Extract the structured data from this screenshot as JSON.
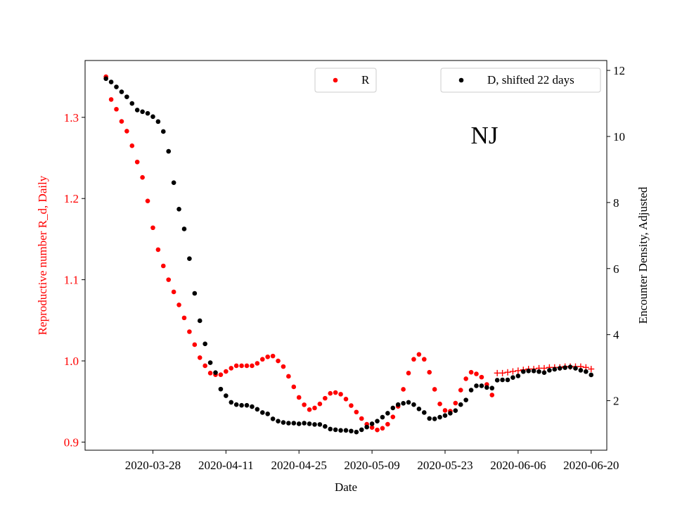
{
  "chart_data": {
    "type": "scatter",
    "xlabel": "Date",
    "ylabel_left": "Reproductive number R_d, Daily",
    "ylabel_right": "Encounter Density, Adjusted",
    "annotation": "NJ",
    "x_ticks": [
      "2020-03-28",
      "2020-04-11",
      "2020-04-25",
      "2020-05-09",
      "2020-05-23",
      "2020-06-06",
      "2020-06-20"
    ],
    "y_left_ticks": [
      "0.9",
      "1.0",
      "1.1",
      "1.2",
      "1.3"
    ],
    "y_right_ticks": [
      "2",
      "4",
      "6",
      "8",
      "10",
      "12"
    ],
    "xlim": [
      "2020-03-15",
      "2020-06-23"
    ],
    "ylim_left": [
      0.89,
      1.37
    ],
    "ylim_right": [
      0.5,
      12.3
    ],
    "legend": [
      {
        "label": "R",
        "color": "#ff0000",
        "placement": "upper-center"
      },
      {
        "label": "D, shifted 22 days",
        "color": "#000000",
        "placement": "upper-right"
      }
    ],
    "colors": {
      "R": "#ff0000",
      "D": "#000000",
      "tick_left": "#ff0000"
    },
    "series": [
      {
        "name": "R",
        "axis": "left",
        "color": "#ff0000",
        "marker": "dot",
        "points": [
          [
            "2020-03-19",
            1.35
          ],
          [
            "2020-03-20",
            1.322
          ],
          [
            "2020-03-21",
            1.31
          ],
          [
            "2020-03-22",
            1.295
          ],
          [
            "2020-03-23",
            1.283
          ],
          [
            "2020-03-24",
            1.265
          ],
          [
            "2020-03-25",
            1.245
          ],
          [
            "2020-03-26",
            1.226
          ],
          [
            "2020-03-27",
            1.197
          ],
          [
            "2020-03-28",
            1.164
          ],
          [
            "2020-03-29",
            1.137
          ],
          [
            "2020-03-30",
            1.117
          ],
          [
            "2020-03-31",
            1.1
          ],
          [
            "2020-04-01",
            1.085
          ],
          [
            "2020-04-02",
            1.069
          ],
          [
            "2020-04-03",
            1.053
          ],
          [
            "2020-04-04",
            1.036
          ],
          [
            "2020-04-05",
            1.02
          ],
          [
            "2020-04-06",
            1.004
          ],
          [
            "2020-04-07",
            0.994
          ],
          [
            "2020-04-08",
            0.985
          ],
          [
            "2020-04-09",
            0.983
          ],
          [
            "2020-04-10",
            0.983
          ],
          [
            "2020-04-11",
            0.987
          ],
          [
            "2020-04-12",
            0.991
          ],
          [
            "2020-04-13",
            0.994
          ],
          [
            "2020-04-14",
            0.994
          ],
          [
            "2020-04-15",
            0.994
          ],
          [
            "2020-04-16",
            0.994
          ],
          [
            "2020-04-17",
            0.997
          ],
          [
            "2020-04-18",
            1.002
          ],
          [
            "2020-04-19",
            1.005
          ],
          [
            "2020-04-20",
            1.006
          ],
          [
            "2020-04-21",
            1.0
          ],
          [
            "2020-04-22",
            0.993
          ],
          [
            "2020-04-23",
            0.981
          ],
          [
            "2020-04-24",
            0.968
          ],
          [
            "2020-04-25",
            0.955
          ],
          [
            "2020-04-26",
            0.946
          ],
          [
            "2020-04-27",
            0.94
          ],
          [
            "2020-04-28",
            0.942
          ],
          [
            "2020-04-29",
            0.947
          ],
          [
            "2020-04-30",
            0.954
          ],
          [
            "2020-05-01",
            0.96
          ],
          [
            "2020-05-02",
            0.961
          ],
          [
            "2020-05-03",
            0.959
          ],
          [
            "2020-05-04",
            0.953
          ],
          [
            "2020-05-05",
            0.945
          ],
          [
            "2020-05-06",
            0.937
          ],
          [
            "2020-05-07",
            0.929
          ],
          [
            "2020-05-08",
            0.922
          ],
          [
            "2020-05-09",
            0.918
          ],
          [
            "2020-05-10",
            0.915
          ],
          [
            "2020-05-11",
            0.917
          ],
          [
            "2020-05-12",
            0.922
          ],
          [
            "2020-05-13",
            0.931
          ],
          [
            "2020-05-14",
            0.944
          ],
          [
            "2020-05-15",
            0.965
          ],
          [
            "2020-05-16",
            0.985
          ],
          [
            "2020-05-17",
            1.002
          ],
          [
            "2020-05-18",
            1.008
          ],
          [
            "2020-05-19",
            1.002
          ],
          [
            "2020-05-20",
            0.986
          ],
          [
            "2020-05-21",
            0.965
          ],
          [
            "2020-05-22",
            0.947
          ],
          [
            "2020-05-23",
            0.939
          ],
          [
            "2020-05-24",
            0.938
          ],
          [
            "2020-05-25",
            0.948
          ],
          [
            "2020-05-26",
            0.964
          ],
          [
            "2020-05-27",
            0.978
          ],
          [
            "2020-05-28",
            0.986
          ],
          [
            "2020-05-29",
            0.984
          ],
          [
            "2020-05-30",
            0.98
          ],
          [
            "2020-05-31",
            0.971
          ],
          [
            "2020-06-01",
            0.958
          ]
        ]
      },
      {
        "name": "R",
        "axis": "left",
        "color": "#ff0000",
        "marker": "plus",
        "points": [
          [
            "2020-06-02",
            0.985
          ],
          [
            "2020-06-03",
            0.985
          ],
          [
            "2020-06-04",
            0.986
          ],
          [
            "2020-06-05",
            0.987
          ],
          [
            "2020-06-06",
            0.988
          ],
          [
            "2020-06-07",
            0.989
          ],
          [
            "2020-06-08",
            0.99
          ],
          [
            "2020-06-09",
            0.99
          ],
          [
            "2020-06-10",
            0.991
          ],
          [
            "2020-06-11",
            0.991
          ],
          [
            "2020-06-12",
            0.992
          ],
          [
            "2020-06-13",
            0.992
          ],
          [
            "2020-06-14",
            0.992
          ],
          [
            "2020-06-15",
            0.993
          ],
          [
            "2020-06-16",
            0.993
          ],
          [
            "2020-06-17",
            0.993
          ],
          [
            "2020-06-18",
            0.993
          ],
          [
            "2020-06-19",
            0.992
          ],
          [
            "2020-06-20",
            0.99
          ]
        ]
      },
      {
        "name": "D, shifted 22 days",
        "axis": "right",
        "color": "#000000",
        "marker": "dot",
        "points": [
          [
            "2020-03-19",
            11.75
          ],
          [
            "2020-03-20",
            11.65
          ],
          [
            "2020-03-21",
            11.5
          ],
          [
            "2020-03-22",
            11.35
          ],
          [
            "2020-03-23",
            11.2
          ],
          [
            "2020-03-24",
            11.0
          ],
          [
            "2020-03-25",
            10.8
          ],
          [
            "2020-03-26",
            10.75
          ],
          [
            "2020-03-27",
            10.7
          ],
          [
            "2020-03-28",
            10.6
          ],
          [
            "2020-03-29",
            10.45
          ],
          [
            "2020-03-30",
            10.15
          ],
          [
            "2020-03-31",
            9.55
          ],
          [
            "2020-04-01",
            8.6
          ],
          [
            "2020-04-02",
            7.8
          ],
          [
            "2020-04-03",
            7.2
          ],
          [
            "2020-04-04",
            6.3
          ],
          [
            "2020-04-05",
            5.25
          ],
          [
            "2020-04-06",
            4.42
          ],
          [
            "2020-04-07",
            3.72
          ],
          [
            "2020-04-08",
            3.15
          ],
          [
            "2020-04-09",
            2.85
          ],
          [
            "2020-04-10",
            2.35
          ],
          [
            "2020-04-11",
            2.15
          ],
          [
            "2020-04-12",
            1.95
          ],
          [
            "2020-04-13",
            1.88
          ],
          [
            "2020-04-14",
            1.86
          ],
          [
            "2020-04-15",
            1.86
          ],
          [
            "2020-04-16",
            1.82
          ],
          [
            "2020-04-17",
            1.74
          ],
          [
            "2020-04-18",
            1.64
          ],
          [
            "2020-04-19",
            1.6
          ],
          [
            "2020-04-20",
            1.45
          ],
          [
            "2020-04-21",
            1.38
          ],
          [
            "2020-04-22",
            1.34
          ],
          [
            "2020-04-23",
            1.32
          ],
          [
            "2020-04-24",
            1.32
          ],
          [
            "2020-04-25",
            1.3
          ],
          [
            "2020-04-26",
            1.32
          ],
          [
            "2020-04-27",
            1.3
          ],
          [
            "2020-04-28",
            1.28
          ],
          [
            "2020-04-29",
            1.28
          ],
          [
            "2020-04-30",
            1.22
          ],
          [
            "2020-05-01",
            1.14
          ],
          [
            "2020-05-02",
            1.12
          ],
          [
            "2020-05-03",
            1.1
          ],
          [
            "2020-05-04",
            1.1
          ],
          [
            "2020-05-05",
            1.08
          ],
          [
            "2020-05-06",
            1.05
          ],
          [
            "2020-05-07",
            1.12
          ],
          [
            "2020-05-08",
            1.2
          ],
          [
            "2020-05-09",
            1.3
          ],
          [
            "2020-05-10",
            1.38
          ],
          [
            "2020-05-11",
            1.5
          ],
          [
            "2020-05-12",
            1.62
          ],
          [
            "2020-05-13",
            1.78
          ],
          [
            "2020-05-14",
            1.88
          ],
          [
            "2020-05-15",
            1.92
          ],
          [
            "2020-05-16",
            1.95
          ],
          [
            "2020-05-17",
            1.88
          ],
          [
            "2020-05-18",
            1.75
          ],
          [
            "2020-05-19",
            1.64
          ],
          [
            "2020-05-20",
            1.46
          ],
          [
            "2020-05-21",
            1.45
          ],
          [
            "2020-05-22",
            1.5
          ],
          [
            "2020-05-23",
            1.55
          ],
          [
            "2020-05-24",
            1.62
          ],
          [
            "2020-05-25",
            1.7
          ],
          [
            "2020-05-26",
            1.88
          ],
          [
            "2020-05-27",
            2.02
          ],
          [
            "2020-05-28",
            2.32
          ],
          [
            "2020-05-29",
            2.45
          ],
          [
            "2020-05-30",
            2.45
          ],
          [
            "2020-05-31",
            2.4
          ],
          [
            "2020-06-01",
            2.38
          ],
          [
            "2020-06-02",
            2.62
          ],
          [
            "2020-06-03",
            2.63
          ],
          [
            "2020-06-04",
            2.63
          ],
          [
            "2020-06-05",
            2.7
          ],
          [
            "2020-06-06",
            2.75
          ],
          [
            "2020-06-07",
            2.88
          ],
          [
            "2020-06-08",
            2.9
          ],
          [
            "2020-06-09",
            2.9
          ],
          [
            "2020-06-10",
            2.88
          ],
          [
            "2020-06-11",
            2.85
          ],
          [
            "2020-06-12",
            2.92
          ],
          [
            "2020-06-13",
            2.95
          ],
          [
            "2020-06-14",
            2.98
          ],
          [
            "2020-06-15",
            3.0
          ],
          [
            "2020-06-16",
            3.02
          ],
          [
            "2020-06-17",
            2.98
          ],
          [
            "2020-06-18",
            2.92
          ],
          [
            "2020-06-19",
            2.88
          ],
          [
            "2020-06-20",
            2.78
          ]
        ]
      }
    ]
  }
}
